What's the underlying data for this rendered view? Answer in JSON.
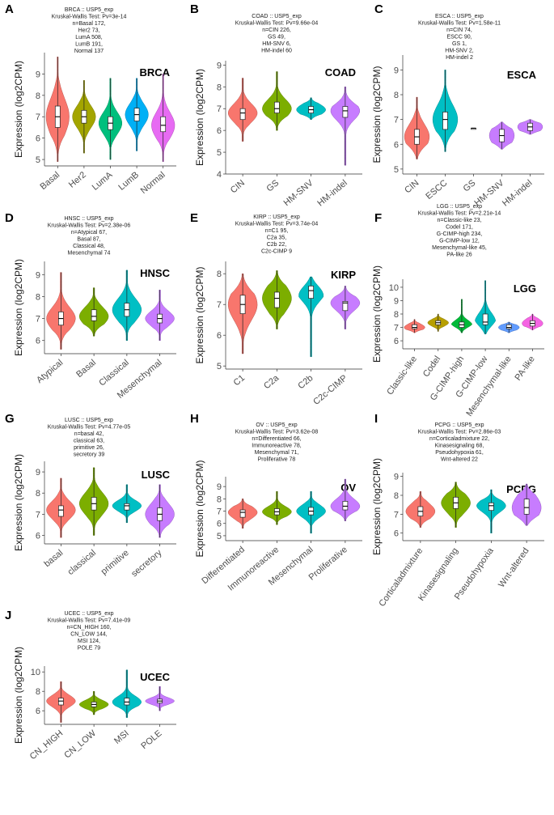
{
  "chart_data": [
    {
      "letter": "A",
      "type": "violin",
      "cancer": "BRCA",
      "title_lines": [
        "BRCA :: USP5_exp",
        "Kruskal-Wallis Test: Pv=3e-14",
        "n=Basal 172,",
        "Her2 73,",
        "LumA 508,",
        "LumB 191,",
        "Normal 137"
      ],
      "ylabel": "Expression (log2CPM)",
      "ylim": [
        4.7,
        10
      ],
      "yticks": [
        5,
        6,
        7,
        8,
        9
      ],
      "categories": [
        "Basal",
        "Her2",
        "LumA",
        "LumB",
        "Normal"
      ],
      "colors": [
        "#F8766D",
        "#A3A500",
        "#00BF7D",
        "#00B0F6",
        "#E76BF3"
      ],
      "stats": [
        {
          "min": 4.9,
          "q1": 6.5,
          "median": 7.0,
          "q3": 7.5,
          "max": 9.8
        },
        {
          "min": 5.3,
          "q1": 6.7,
          "median": 7.0,
          "q3": 7.3,
          "max": 8.7
        },
        {
          "min": 5.0,
          "q1": 6.4,
          "median": 6.7,
          "q3": 7.0,
          "max": 8.8
        },
        {
          "min": 5.4,
          "q1": 6.8,
          "median": 7.1,
          "q3": 7.4,
          "max": 8.8
        },
        {
          "min": 4.9,
          "q1": 6.3,
          "median": 6.6,
          "q3": 7.0,
          "max": 9.0
        }
      ]
    },
    {
      "letter": "B",
      "type": "violin",
      "cancer": "COAD",
      "title_lines": [
        "COAD :: USP5_exp",
        "Kruskal-Wallis Test: Pv=9.66e-04",
        "n=CIN 226,",
        "GS 49,",
        "HM-SNV 6,",
        "HM-indel 60"
      ],
      "ylabel": "Expression (log2CPM)",
      "ylim": [
        4,
        9.2
      ],
      "yticks": [
        4,
        5,
        6,
        7,
        8,
        9
      ],
      "categories": [
        "CIN",
        "GS",
        "HM-SNV",
        "HM-indel"
      ],
      "colors": [
        "#F8766D",
        "#7CAE00",
        "#00BFC4",
        "#C77CFF"
      ],
      "stats": [
        {
          "min": 5.5,
          "q1": 6.5,
          "median": 6.8,
          "q3": 7.0,
          "max": 8.4
        },
        {
          "min": 6.0,
          "q1": 6.8,
          "median": 7.0,
          "q3": 7.3,
          "max": 8.7
        },
        {
          "min": 6.5,
          "q1": 6.8,
          "median": 6.95,
          "q3": 7.1,
          "max": 7.5
        },
        {
          "min": 4.4,
          "q1": 6.6,
          "median": 6.9,
          "q3": 7.1,
          "max": 8.0
        }
      ]
    },
    {
      "letter": "C",
      "type": "violin",
      "cancer": "ESCA",
      "title_lines": [
        "ESCA :: USP5_exp",
        "Kruskal-Wallis Test: Pv=1.58e-11",
        "n=CIN 74,",
        "ESCC 90,",
        "GS 1,",
        "HM-SNV 2,",
        "HM-indel 2"
      ],
      "ylabel": "Expression (log2CPM)",
      "ylim": [
        4.8,
        9.6
      ],
      "yticks": [
        5,
        6,
        7,
        8,
        9
      ],
      "categories": [
        "CIN",
        "ESCC",
        "GS",
        "HM-SNV",
        "HM-indel"
      ],
      "colors": [
        "#F8766D",
        "#00BFC4",
        "#00BFC4",
        "#C77CFF",
        "#C77CFF"
      ],
      "stats": [
        {
          "min": 5.4,
          "q1": 6.0,
          "median": 6.3,
          "q3": 6.6,
          "max": 7.9
        },
        {
          "min": 5.7,
          "q1": 6.6,
          "median": 7.0,
          "q3": 7.3,
          "max": 9.0
        },
        {
          "min": 6.65,
          "q1": 6.65,
          "median": 6.65,
          "q3": 6.65,
          "max": 6.65
        },
        {
          "min": 5.8,
          "q1": 6.1,
          "median": 6.35,
          "q3": 6.6,
          "max": 6.9
        },
        {
          "min": 6.4,
          "q1": 6.55,
          "median": 6.7,
          "q3": 6.85,
          "max": 7.0
        }
      ]
    },
    {
      "letter": "D",
      "type": "violin",
      "cancer": "HNSC",
      "title_lines": [
        "HNSC :: USP5_exp",
        "Kruskal-Wallis Test: Pv=2.38e-06",
        "n=Atypical 67,",
        "Basal 87,",
        "Classical 48,",
        "Mesenchymal 74"
      ],
      "ylabel": "Expression (log2CPM)",
      "ylim": [
        5.4,
        9.6
      ],
      "yticks": [
        6,
        7,
        8,
        9
      ],
      "categories": [
        "Atypical",
        "Basal",
        "Classical",
        "Mesenchymal"
      ],
      "colors": [
        "#F8766D",
        "#7CAE00",
        "#00BFC4",
        "#C77CFF"
      ],
      "stats": [
        {
          "min": 5.6,
          "q1": 6.7,
          "median": 7.0,
          "q3": 7.3,
          "max": 9.1
        },
        {
          "min": 6.2,
          "q1": 6.9,
          "median": 7.1,
          "q3": 7.4,
          "max": 8.4
        },
        {
          "min": 6.0,
          "q1": 7.1,
          "median": 7.4,
          "q3": 7.7,
          "max": 9.2
        },
        {
          "min": 6.0,
          "q1": 6.8,
          "median": 7.0,
          "q3": 7.2,
          "max": 8.3
        }
      ]
    },
    {
      "letter": "E",
      "type": "violin",
      "cancer": "KIRP",
      "title_lines": [
        "KIRP :: USP5_exp",
        "Kruskal-Wallis Test: Pv=3.74e-04",
        "n=C1 95,",
        "C2a 35,",
        "C2b 22,",
        "C2c-CIMP 9"
      ],
      "ylabel": "Expression (log2CPM)",
      "ylim": [
        4.9,
        8.4
      ],
      "yticks": [
        5,
        6,
        7,
        8
      ],
      "categories": [
        "C1",
        "C2a",
        "C2b",
        "C2c-CIMP"
      ],
      "colors": [
        "#F8766D",
        "#7CAE00",
        "#00BFC4",
        "#C77CFF"
      ],
      "stats": [
        {
          "min": 5.4,
          "q1": 6.7,
          "median": 7.0,
          "q3": 7.3,
          "max": 8.0
        },
        {
          "min": 6.2,
          "q1": 6.9,
          "median": 7.2,
          "q3": 7.4,
          "max": 8.1
        },
        {
          "min": 5.3,
          "q1": 7.2,
          "median": 7.45,
          "q3": 7.6,
          "max": 7.9
        },
        {
          "min": 6.2,
          "q1": 6.8,
          "median": 7.05,
          "q3": 7.1,
          "max": 7.6
        }
      ]
    },
    {
      "letter": "F",
      "type": "violin",
      "cancer": "LGG",
      "title_lines": [
        "LGG :: USP5_exp",
        "Kruskal-Wallis Test: Pv=2.21e-14",
        "n=Classic-like 23,",
        "Codel 171,",
        "G-CIMP-high 234,",
        "G-CIMP-low 12,",
        "Mesenchymal-like 45,",
        "PA-like 26"
      ],
      "ylabel": "Expression (log2CPM)",
      "ylim": [
        5.4,
        10.6
      ],
      "yticks": [
        6,
        7,
        8,
        9,
        10
      ],
      "categories": [
        "Classic-like",
        "Codel",
        "G-CIMP-high",
        "G-CIMP-low",
        "Mesenchymal-like",
        "PA-like"
      ],
      "colors": [
        "#F8766D",
        "#B79F00",
        "#00BA38",
        "#00BFC4",
        "#619CFF",
        "#F564E3"
      ],
      "stats": [
        {
          "min": 6.6,
          "q1": 6.9,
          "median": 7.0,
          "q3": 7.2,
          "max": 7.6
        },
        {
          "min": 6.7,
          "q1": 7.2,
          "median": 7.35,
          "q3": 7.5,
          "max": 8.0
        },
        {
          "min": 6.6,
          "q1": 7.0,
          "median": 7.2,
          "q3": 7.4,
          "max": 9.1
        },
        {
          "min": 6.5,
          "q1": 7.2,
          "median": 7.4,
          "q3": 8.0,
          "max": 10.5
        },
        {
          "min": 6.6,
          "q1": 6.9,
          "median": 7.0,
          "q3": 7.2,
          "max": 7.4
        },
        {
          "min": 6.8,
          "q1": 7.1,
          "median": 7.3,
          "q3": 7.5,
          "max": 8.0
        }
      ]
    },
    {
      "letter": "G",
      "type": "violin",
      "cancer": "LUSC",
      "title_lines": [
        "LUSC :: USP5_exp",
        "Kruskal-Wallis Test: Pv=4.77e-05",
        "n=basal 42,",
        "classical 63,",
        "primitive 26,",
        "secretory 39"
      ],
      "ylabel": "Expression (log2CPM)",
      "ylim": [
        5.6,
        9.5
      ],
      "yticks": [
        6,
        7,
        8,
        9
      ],
      "categories": [
        "basal",
        "classical",
        "primitive",
        "secretory"
      ],
      "colors": [
        "#F8766D",
        "#7CAE00",
        "#00BFC4",
        "#C77CFF"
      ],
      "stats": [
        {
          "min": 5.9,
          "q1": 6.9,
          "median": 7.2,
          "q3": 7.4,
          "max": 8.7
        },
        {
          "min": 6.0,
          "q1": 7.2,
          "median": 7.5,
          "q3": 7.8,
          "max": 9.2
        },
        {
          "min": 6.6,
          "q1": 7.2,
          "median": 7.4,
          "q3": 7.5,
          "max": 8.4
        },
        {
          "min": 5.9,
          "q1": 6.7,
          "median": 7.0,
          "q3": 7.3,
          "max": 8.4
        }
      ]
    },
    {
      "letter": "H",
      "type": "violin",
      "cancer": "OV",
      "title_lines": [
        "OV :: USP5_exp",
        "Kruskal-Wallis Test: Pv=3.62e-08",
        "n=Differentiated 66,",
        "Immunoreactive 78,",
        "Mesenchymal 71,",
        "Proliferative 78"
      ],
      "ylabel": "Expression (log2CPM)",
      "ylim": [
        4.6,
        9.8
      ],
      "yticks": [
        5,
        6,
        7,
        8,
        9
      ],
      "categories": [
        "Differentiated",
        "Immunoreactive",
        "Mesenchymal",
        "Proliferative"
      ],
      "colors": [
        "#F8766D",
        "#7CAE00",
        "#00BFC4",
        "#C77CFF"
      ],
      "stats": [
        {
          "min": 5.6,
          "q1": 6.5,
          "median": 6.9,
          "q3": 7.1,
          "max": 8.0
        },
        {
          "min": 5.9,
          "q1": 6.7,
          "median": 6.95,
          "q3": 7.2,
          "max": 8.6
        },
        {
          "min": 5.2,
          "q1": 6.7,
          "median": 7.0,
          "q3": 7.3,
          "max": 8.6
        },
        {
          "min": 6.2,
          "q1": 7.1,
          "median": 7.4,
          "q3": 7.8,
          "max": 9.6
        }
      ]
    },
    {
      "letter": "I",
      "type": "violin",
      "cancer": "PCPG",
      "title_lines": [
        "PCPG :: USP5_exp",
        "Kruskal-Wallis Test: Pv=2.86e-03",
        "n=Corticaladmixture 22,",
        "Kinasesignaling 68,",
        "Pseudohypoxia 61,",
        "Wnt-altered 22"
      ],
      "ylabel": "Expression (log2CPM)",
      "ylim": [
        5.6,
        9.2
      ],
      "yticks": [
        6,
        7,
        8,
        9
      ],
      "categories": [
        "Corticaladmixture",
        "Kinasesignaling",
        "Pseudohypoxia",
        "Wnt-altered"
      ],
      "colors": [
        "#F8766D",
        "#7CAE00",
        "#00BFC4",
        "#C77CFF"
      ],
      "stats": [
        {
          "min": 6.3,
          "q1": 6.9,
          "median": 7.15,
          "q3": 7.4,
          "max": 8.2
        },
        {
          "min": 6.3,
          "q1": 7.3,
          "median": 7.6,
          "q3": 7.9,
          "max": 8.7
        },
        {
          "min": 6.0,
          "q1": 7.2,
          "median": 7.45,
          "q3": 7.6,
          "max": 8.3
        },
        {
          "min": 6.4,
          "q1": 7.0,
          "median": 7.35,
          "q3": 7.8,
          "max": 8.6
        }
      ]
    },
    {
      "letter": "J",
      "type": "violin",
      "cancer": "UCEC",
      "title_lines": [
        "UCEC :: USP5_exp",
        "Kruskal-Wallis Test: Pv=7.41e-09",
        "n=CN_HIGH 160,",
        "CN_LOW 144,",
        "MSI 124,",
        "POLE 79"
      ],
      "ylabel": "Expression (log2CPM)",
      "ylim": [
        4.6,
        10.6
      ],
      "yticks": [
        6,
        8,
        10
      ],
      "categories": [
        "CN_HIGH",
        "CN_LOW",
        "MSI",
        "POLE"
      ],
      "colors": [
        "#F8766D",
        "#7CAE00",
        "#00BFC4",
        "#C77CFF"
      ],
      "stats": [
        {
          "min": 4.8,
          "q1": 6.6,
          "median": 7.0,
          "q3": 7.3,
          "max": 9.0
        },
        {
          "min": 5.6,
          "q1": 6.4,
          "median": 6.65,
          "q3": 6.9,
          "max": 8.0
        },
        {
          "min": 5.3,
          "q1": 6.6,
          "median": 6.9,
          "q3": 7.3,
          "max": 10.2
        },
        {
          "min": 6.0,
          "q1": 6.8,
          "median": 7.0,
          "q3": 7.2,
          "max": 8.5
        }
      ]
    }
  ]
}
